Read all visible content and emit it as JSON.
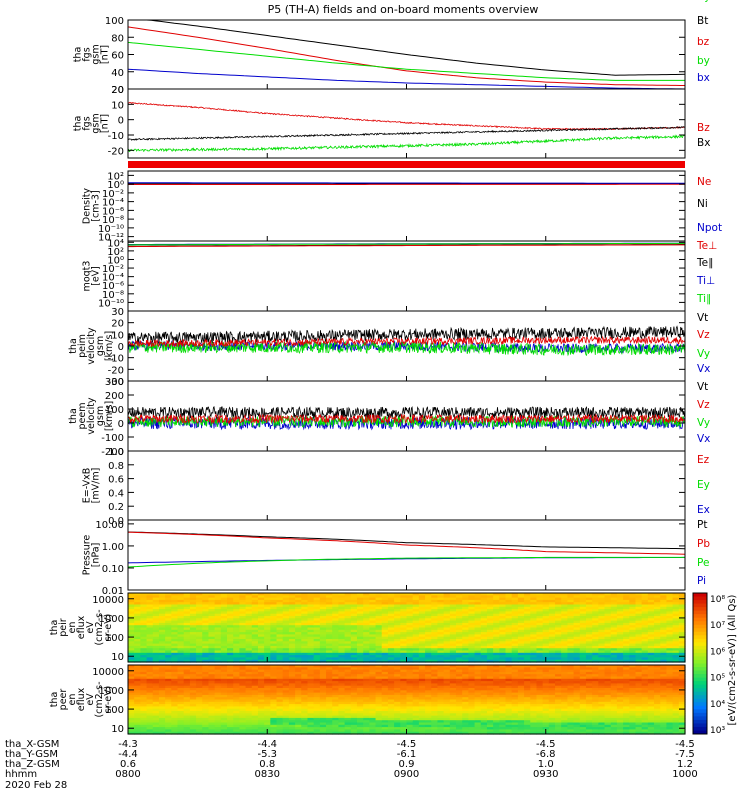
{
  "title": "P5 (TH-A) fields and on-board moments overview",
  "colors": {
    "black": "#000000",
    "red": "#e00000",
    "green": "#00dd00",
    "blue": "#0000cc"
  },
  "chart_data": [
    {
      "id": "p1",
      "type": "line",
      "ylabel": [
        "tha",
        "fgs",
        "gsm",
        "[nT]"
      ],
      "yscale": "linear",
      "ylim": [
        20,
        100
      ],
      "yticks": [
        20,
        40,
        60,
        80,
        100
      ],
      "yticklabels": [
        "20",
        "40",
        "60",
        "80",
        "100"
      ],
      "legend": [
        {
          "label": "Bt",
          "color": "black"
        },
        {
          "label": "bz",
          "color": "red"
        },
        {
          "label": "by",
          "color": "green"
        },
        {
          "label": "bx",
          "color": "blue"
        }
      ],
      "series": [
        {
          "name": "Bt",
          "color": "black",
          "x": [
            0,
            15,
            30,
            45,
            60,
            75,
            90,
            105,
            120
          ],
          "y": [
            103,
            93,
            82,
            71,
            60,
            50,
            42,
            36,
            37
          ],
          "noise": 0
        },
        {
          "name": "bz",
          "color": "red",
          "x": [
            0,
            15,
            30,
            45,
            60,
            75,
            90,
            105,
            120
          ],
          "y": [
            92,
            80,
            67,
            53,
            41,
            33,
            28,
            25,
            24
          ],
          "noise": 0
        },
        {
          "name": "by",
          "color": "green",
          "x": [
            0,
            15,
            30,
            45,
            60,
            75,
            90,
            105,
            120
          ],
          "y": [
            74,
            66,
            58,
            50,
            43,
            38,
            33,
            30,
            30
          ],
          "noise": 0
        },
        {
          "name": "bx",
          "color": "blue",
          "x": [
            0,
            15,
            30,
            45,
            60,
            75,
            90,
            105,
            120
          ],
          "y": [
            43,
            38,
            34,
            30,
            27,
            25,
            23,
            21,
            20
          ],
          "noise": 0
        }
      ]
    },
    {
      "id": "p2",
      "type": "line",
      "ylabel": [
        "tha",
        "fgs",
        "gsm",
        "[nT]"
      ],
      "yscale": "linear",
      "ylim": [
        -25,
        20
      ],
      "yticks": [
        -20,
        -10,
        0,
        10,
        20
      ],
      "yticklabels": [
        "-20",
        "-10",
        "0",
        "10",
        "20"
      ],
      "legend": [
        {
          "label": "Bz",
          "color": "red"
        },
        {
          "label": "Bx",
          "color": "black"
        },
        {
          "label": "By",
          "color": "green"
        }
      ],
      "series": [
        {
          "name": "Bz",
          "color": "red",
          "x": [
            0,
            15,
            30,
            45,
            60,
            75,
            90,
            105,
            120
          ],
          "y": [
            11,
            8,
            4,
            1,
            -2,
            -4,
            -6,
            -6,
            -5
          ],
          "noise": 0.4
        },
        {
          "name": "Bx",
          "color": "black",
          "x": [
            0,
            15,
            30,
            45,
            60,
            75,
            90,
            105,
            120
          ],
          "y": [
            -13,
            -12,
            -11,
            -10,
            -9,
            -8,
            -7,
            -6,
            -5
          ],
          "noise": 0.5
        },
        {
          "name": "By",
          "color": "green",
          "x": [
            0,
            15,
            30,
            45,
            60,
            75,
            90,
            105,
            120
          ],
          "y": [
            -20,
            -19.5,
            -19,
            -18,
            -17,
            -16,
            -14,
            -12,
            -11
          ],
          "noise": 0.8
        }
      ]
    },
    {
      "id": "p4",
      "type": "line",
      "ylabel": [
        "Density",
        "[cm-3]"
      ],
      "yscale": "log",
      "ylim": [
        1e-13,
        1000.0
      ],
      "yticks": [
        100.0,
        1,
        0.01,
        0.0001,
        1e-06,
        1e-08,
        1e-10,
        1e-12
      ],
      "yticklabels": [
        "10²",
        "10⁰",
        "10⁻²",
        "10⁻⁴",
        "10⁻⁶",
        "10⁻⁸",
        "10⁻¹⁰",
        "10⁻¹²"
      ],
      "legend": [
        {
          "label": "Ne",
          "color": "red"
        },
        {
          "label": "Ni",
          "color": "black"
        },
        {
          "label": "Npot",
          "color": "blue"
        }
      ],
      "series": [
        {
          "name": "Ni",
          "color": "black",
          "x": [
            0,
            120
          ],
          "y": [
            1.5,
            1.3
          ],
          "noise": 0
        },
        {
          "name": "Ne",
          "color": "red",
          "x": [
            0,
            120
          ],
          "y": [
            0.8,
            0.9
          ],
          "noise": 0
        },
        {
          "name": "Npot",
          "color": "blue",
          "x": [
            0,
            120
          ],
          "y": [
            2,
            1.6
          ],
          "noise": 0
        }
      ]
    },
    {
      "id": "p5",
      "type": "line",
      "ylabel": [
        "moqt3",
        "[eV]"
      ],
      "yscale": "log",
      "ylim": [
        1e-12,
        20000.0
      ],
      "yticks": [
        10000.0,
        100.0,
        1,
        0.01,
        0.0001,
        1e-06,
        1e-08,
        1e-10
      ],
      "yticklabels": [
        "10⁴",
        "10²",
        "10⁰",
        "10⁻²",
        "10⁻⁴",
        "10⁻⁶",
        "10⁻⁸",
        "10⁻¹⁰"
      ],
      "legend": [
        {
          "label": "Te⊥",
          "color": "red"
        },
        {
          "label": "Te∥",
          "color": "black"
        },
        {
          "label": "Ti⊥",
          "color": "blue"
        },
        {
          "label": "Ti∥",
          "color": "green"
        }
      ],
      "series": [
        {
          "name": "Ti⊥",
          "color": "blue",
          "x": [
            0,
            120
          ],
          "y": [
            3000,
            6000
          ],
          "noise": 0
        },
        {
          "name": "Ti∥",
          "color": "green",
          "x": [
            0,
            120
          ],
          "y": [
            2500,
            5500
          ],
          "noise": 0
        },
        {
          "name": "Te∥",
          "color": "black",
          "x": [
            0,
            120
          ],
          "y": [
            1200,
            3000
          ],
          "noise": 0
        },
        {
          "name": "Te⊥",
          "color": "red",
          "x": [
            0,
            120
          ],
          "y": [
            1000,
            2500
          ],
          "noise": 0
        }
      ]
    },
    {
      "id": "p6",
      "type": "line",
      "ylabel": [
        "tha",
        "peim",
        "velocity",
        "gsm",
        "[km/s]"
      ],
      "yscale": "linear",
      "ylim": [
        -30,
        30
      ],
      "yticks": [
        -30,
        -20,
        -10,
        0,
        10,
        20,
        30
      ],
      "yticklabels": [
        "-30",
        "-20",
        "-10",
        "0",
        "10",
        "20",
        "30"
      ],
      "legend": [
        {
          "label": "Vt",
          "color": "black"
        },
        {
          "label": "Vz",
          "color": "red"
        },
        {
          "label": "Vy",
          "color": "green"
        },
        {
          "label": "Vx",
          "color": "blue"
        }
      ],
      "series": [
        {
          "name": "Vx",
          "color": "blue",
          "x": [
            0,
            60,
            90,
            120
          ],
          "y": [
            0,
            0,
            -2,
            -2
          ],
          "noise": 4
        },
        {
          "name": "Vy",
          "color": "green",
          "x": [
            0,
            60,
            90,
            120
          ],
          "y": [
            -1,
            -1,
            -3,
            -3
          ],
          "noise": 5
        },
        {
          "name": "Vt",
          "color": "black",
          "x": [
            0,
            30,
            60,
            90,
            120
          ],
          "y": [
            7,
            8,
            10,
            11,
            12
          ],
          "noise": 5
        },
        {
          "name": "Vz",
          "color": "red",
          "x": [
            0,
            30,
            60,
            90,
            120
          ],
          "y": [
            2,
            3,
            4,
            5,
            5
          ],
          "noise": 3
        }
      ]
    },
    {
      "id": "p7",
      "type": "line",
      "ylabel": [
        "tha",
        "peem",
        "velocity",
        "gsm",
        "[km/s]"
      ],
      "yscale": "linear",
      "ylim": [
        -200,
        300
      ],
      "yticks": [
        -200,
        -100,
        0,
        100,
        200,
        300
      ],
      "yticklabels": [
        "-200",
        "-100",
        "0",
        "100",
        "200",
        "300"
      ],
      "legend": [
        {
          "label": "Vt",
          "color": "black"
        },
        {
          "label": "Vz",
          "color": "red"
        },
        {
          "label": "Vy",
          "color": "green"
        },
        {
          "label": "Vx",
          "color": "blue"
        }
      ],
      "series": [
        {
          "name": "Vx",
          "color": "blue",
          "x": [
            0,
            120
          ],
          "y": [
            0,
            0
          ],
          "noise": 45
        },
        {
          "name": "Vy",
          "color": "green",
          "x": [
            0,
            120
          ],
          "y": [
            10,
            10
          ],
          "noise": 40
        },
        {
          "name": "Vt",
          "color": "black",
          "x": [
            0,
            120
          ],
          "y": [
            75,
            75
          ],
          "noise": 40
        },
        {
          "name": "Vz",
          "color": "red",
          "x": [
            0,
            120
          ],
          "y": [
            30,
            30
          ],
          "noise": 30
        }
      ]
    },
    {
      "id": "p8",
      "type": "line",
      "ylabel": [
        "E=-VxB",
        "[mV/m]"
      ],
      "yscale": "linear",
      "ylim": [
        0,
        1
      ],
      "yticks": [
        0,
        0.2,
        0.4,
        0.6,
        0.8,
        1.0
      ],
      "yticklabels": [
        "0.0",
        "0.2",
        "0.4",
        "0.6",
        "0.8",
        "1.0"
      ],
      "legend": [
        {
          "label": "Ez",
          "color": "red"
        },
        {
          "label": "Ey",
          "color": "green"
        },
        {
          "label": "Ex",
          "color": "blue"
        }
      ],
      "series": []
    },
    {
      "id": "p9",
      "type": "line",
      "ylabel": [
        "Pressure",
        "[nPa]"
      ],
      "yscale": "log",
      "ylim": [
        0.01,
        15
      ],
      "yticks": [
        10,
        1,
        0.1,
        0.01
      ],
      "yticklabels": [
        "10.00",
        "1.00",
        "0.10",
        "0.01"
      ],
      "legend": [
        {
          "label": "Pt",
          "color": "black"
        },
        {
          "label": "Pb",
          "color": "red"
        },
        {
          "label": "Pe",
          "color": "green"
        },
        {
          "label": "Pi",
          "color": "blue"
        }
      ],
      "series": [
        {
          "name": "Pt",
          "color": "black",
          "x": [
            0,
            30,
            60,
            90,
            120
          ],
          "y": [
            4.3,
            2.6,
            1.4,
            0.9,
            0.75
          ],
          "noise": 0
        },
        {
          "name": "Pb",
          "color": "red",
          "x": [
            0,
            30,
            60,
            90,
            120
          ],
          "y": [
            4.2,
            2.3,
            1.1,
            0.55,
            0.42
          ],
          "noise": 0
        },
        {
          "name": "Pi",
          "color": "blue",
          "x": [
            0,
            30,
            60,
            90,
            120
          ],
          "y": [
            0.17,
            0.22,
            0.26,
            0.29,
            0.3
          ],
          "noise": 0
        },
        {
          "name": "Pe",
          "color": "green",
          "x": [
            0,
            20,
            40,
            60,
            90,
            120
          ],
          "y": [
            0.11,
            0.18,
            0.24,
            0.28,
            0.3,
            0.3
          ],
          "noise": 0
        }
      ]
    },
    {
      "id": "s1",
      "type": "heatmap",
      "ylabel": [
        "tha",
        "peir",
        "en",
        "eflux",
        "eV",
        "(cm2-s-",
        "sr-eV)"
      ],
      "yscale": "log",
      "ylim": [
        5,
        20000
      ],
      "yticks": [
        10,
        100,
        1000,
        10000
      ],
      "yticklabels": [
        "10",
        "100",
        "1000",
        "10000"
      ]
    },
    {
      "id": "s2",
      "type": "heatmap",
      "ylabel": [
        "tha",
        "peer",
        "en",
        "eflux",
        "eV",
        "(cm2-s-",
        "sr-eV)"
      ],
      "yscale": "log",
      "ylim": [
        5,
        20000
      ],
      "yticks": [
        10,
        100,
        1000,
        10000
      ],
      "yticklabels": [
        "10",
        "100",
        "1000",
        "10000"
      ]
    }
  ],
  "colorbar": {
    "labels": [
      "10⁸",
      "10⁷",
      "10⁶",
      "10⁵",
      "10⁴",
      "10³"
    ],
    "title": "[eV/(cm2-s-sr-eV)] (All Qs)"
  },
  "xaxis": {
    "range": [
      0,
      120
    ],
    "ticks": [
      0,
      30,
      60,
      90,
      120
    ],
    "rows": [
      {
        "label": "tha_X-GSM",
        "values": [
          "-4.3",
          "-4.4",
          "-4.5",
          "-4.5",
          "-4.5"
        ]
      },
      {
        "label": "tha_Y-GSM",
        "values": [
          "-4.4",
          "-5.3",
          "-6.1",
          "-6.8",
          "-7.5"
        ]
      },
      {
        "label": "tha_Z-GSM",
        "values": [
          "0.6",
          "0.8",
          "0.9",
          "1.0",
          "1.2"
        ]
      },
      {
        "label": "hhmm",
        "values": [
          "0800",
          "0830",
          "0900",
          "0930",
          "1000"
        ]
      }
    ],
    "date": "2020 Feb 28"
  }
}
